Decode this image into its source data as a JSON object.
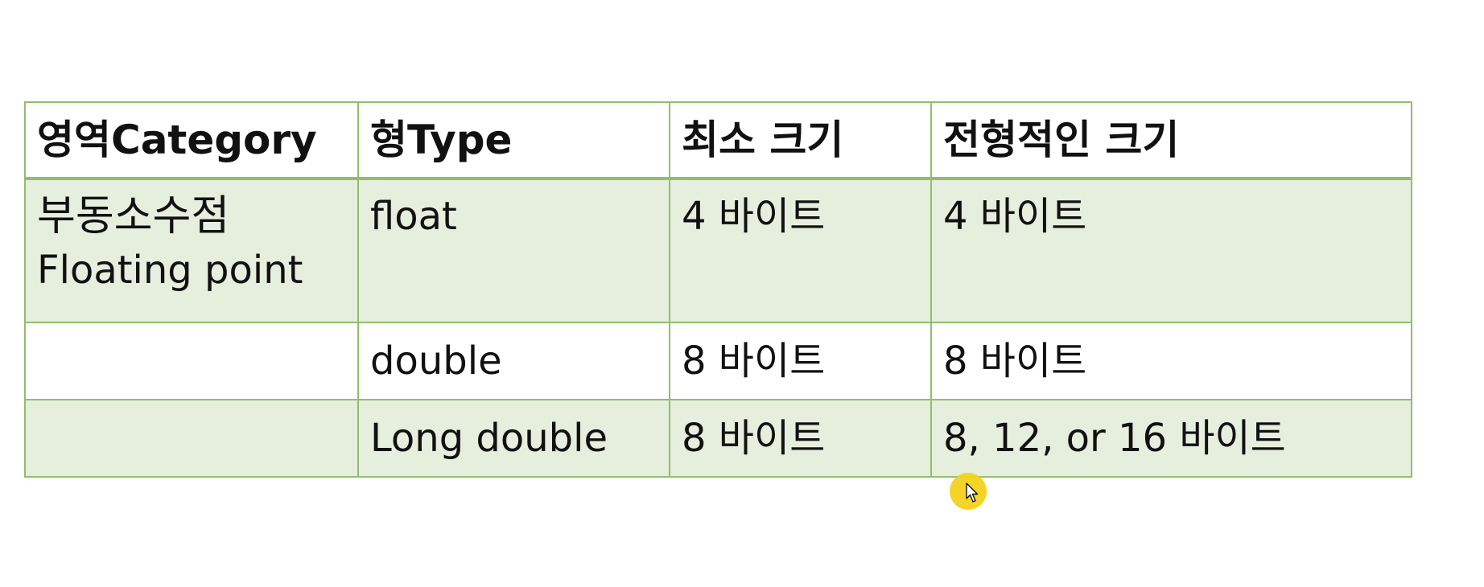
{
  "table": {
    "headers": [
      "영역Category",
      "형Type",
      "최소 크기",
      "전형적인 크기"
    ],
    "rows": [
      {
        "category_main": "부동소수점",
        "category_sub": "Floating point",
        "type": "float",
        "min_size": "4 바이트",
        "typical_size": "4 바이트"
      },
      {
        "category_main": "",
        "category_sub": "",
        "type": "double",
        "min_size": "8 바이트",
        "typical_size": "8 바이트"
      },
      {
        "category_main": "",
        "category_sub": "",
        "type": "Long double",
        "min_size": "8 바이트",
        "typical_size": "8, 12, or 16 바이트"
      }
    ]
  },
  "colors": {
    "border": "#8fbf6c",
    "shaded_row": "#e6eedd",
    "header_bg": "#ffffff",
    "cursor_highlight": "#f3d21b"
  },
  "icons": {
    "cursor": "mouse-pointer-icon"
  }
}
